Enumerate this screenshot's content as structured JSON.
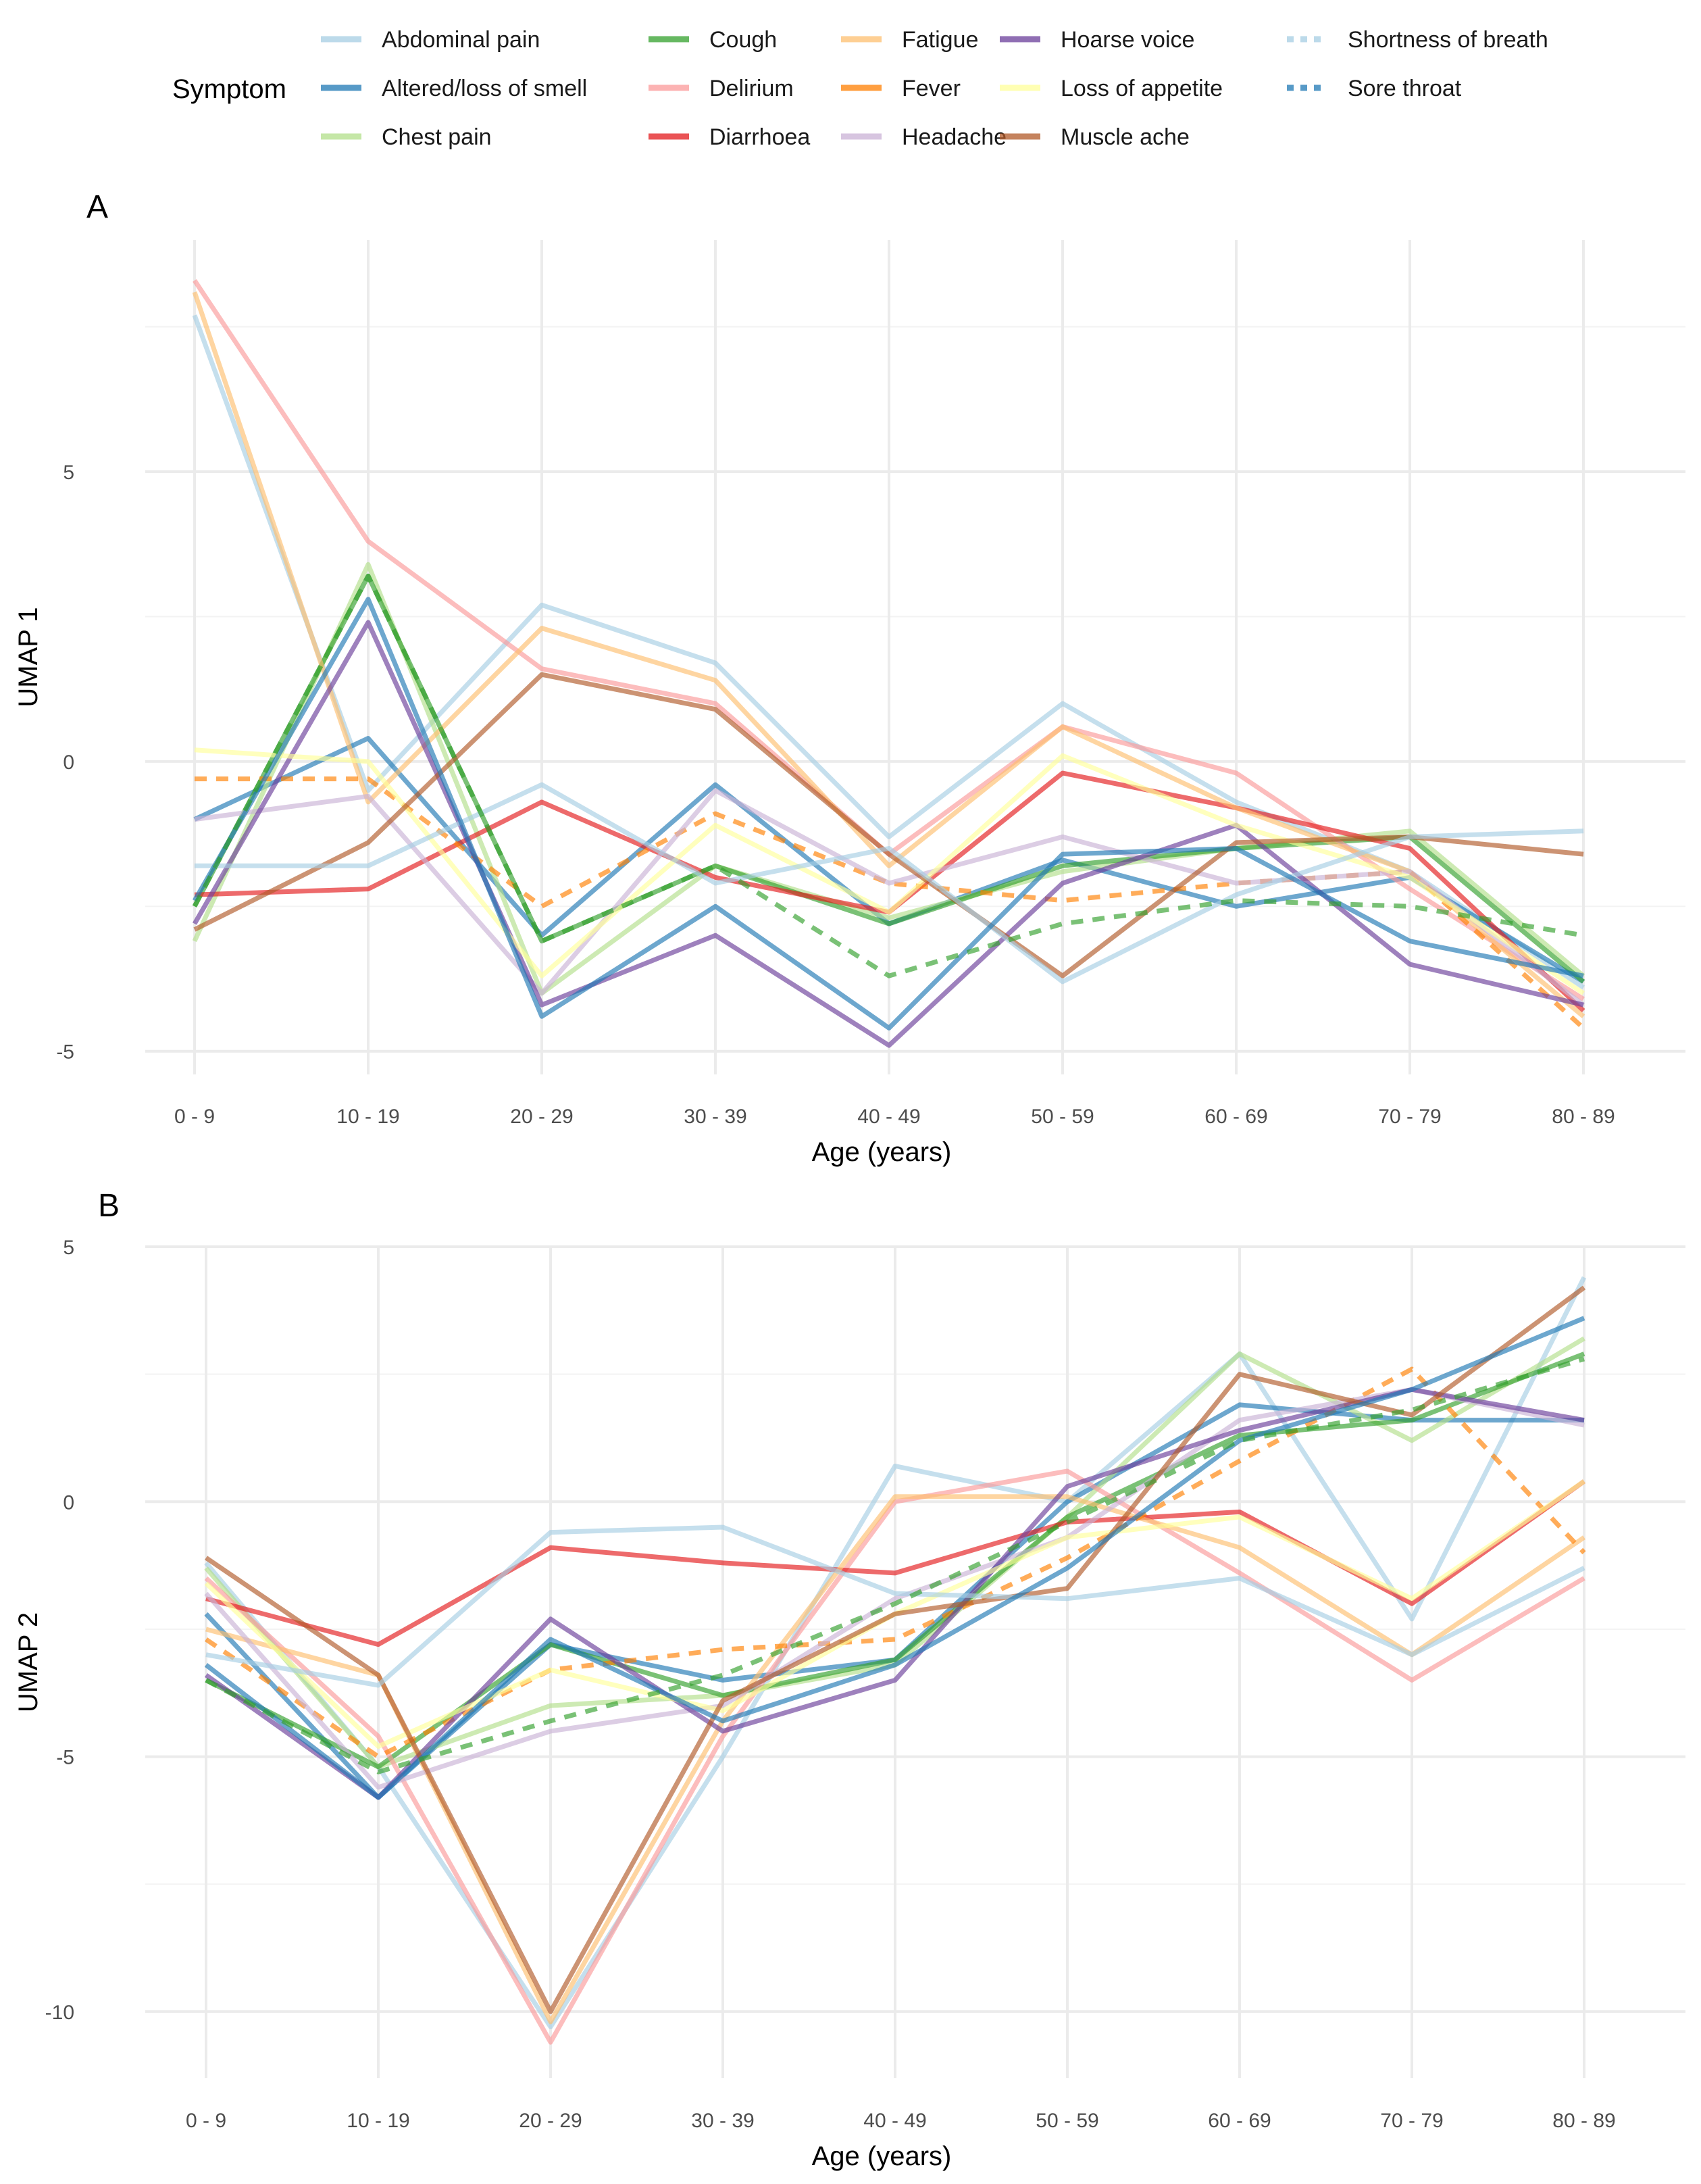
{
  "legend": {
    "title": "Symptom",
    "items": [
      {
        "label": "Abdominal pain",
        "color": "#a6cee3",
        "dash": "solid"
      },
      {
        "label": "Altered/loss of smell",
        "color": "#1f78b4",
        "dash": "solid"
      },
      {
        "label": "Chest pain",
        "color": "#b2df8a",
        "dash": "solid"
      },
      {
        "label": "Cough",
        "color": "#33a02c",
        "dash": "solid"
      },
      {
        "label": "Delirium",
        "color": "#fb9a99",
        "dash": "solid"
      },
      {
        "label": "Diarrhoea",
        "color": "#e31a1c",
        "dash": "solid"
      },
      {
        "label": "Fatigue",
        "color": "#fdbf6f",
        "dash": "solid"
      },
      {
        "label": "Fever",
        "color": "#ff7f00",
        "dash": "solid"
      },
      {
        "label": "Headache",
        "color": "#cab2d6",
        "dash": "solid"
      },
      {
        "label": "Hoarse voice",
        "color": "#6a3d9a",
        "dash": "solid"
      },
      {
        "label": "Loss of appetite",
        "color": "#ffff99",
        "dash": "solid"
      },
      {
        "label": "Muscle ache",
        "color": "#b15928",
        "dash": "solid"
      },
      {
        "label": "Shortness of breath",
        "color": "#a6cee3",
        "dash": "dotted"
      },
      {
        "label": "Sore throat",
        "color": "#1f78b4",
        "dash": "dotted"
      }
    ]
  },
  "chart_data": [
    {
      "type": "line",
      "panel": "A",
      "xlabel": "Age (years)",
      "ylabel": "UMAP 1",
      "categories": [
        "0 - 9",
        "10 - 19",
        "20 - 29",
        "30 - 39",
        "40 - 49",
        "50 - 59",
        "60 - 69",
        "70 - 79",
        "80 - 89"
      ],
      "ylim": [
        -5.4,
        9.0
      ],
      "yticks": [
        -5,
        0,
        5
      ],
      "ytick_labels": [
        "-5",
        "0",
        "5"
      ],
      "series": [
        {
          "name": "Abdominal pain",
          "color": "#a6cee3",
          "dash": "solid",
          "values": [
            7.7,
            -0.5,
            2.7,
            1.7,
            -1.3,
            1.0,
            -0.7,
            -1.9,
            -3.9
          ]
        },
        {
          "name": "Altered/loss of smell",
          "color": "#1f78b4",
          "dash": "solid",
          "values": [
            -1.0,
            0.4,
            -3.0,
            -0.4,
            -2.8,
            -1.7,
            -2.5,
            -2.0,
            -3.8
          ]
        },
        {
          "name": "Chest pain",
          "color": "#b2df8a",
          "dash": "solid",
          "values": [
            -3.1,
            3.4,
            -4.0,
            -1.8,
            -2.7,
            -1.9,
            -1.5,
            -1.2,
            -3.7
          ]
        },
        {
          "name": "Cough",
          "color": "#33a02c",
          "dash": "solid",
          "values": [
            -2.5,
            3.2,
            -3.1,
            -1.8,
            -2.8,
            -1.8,
            -1.5,
            -1.3,
            -3.8
          ]
        },
        {
          "name": "Delirium",
          "color": "#fb9a99",
          "dash": "solid",
          "values": [
            8.3,
            3.8,
            1.6,
            1.0,
            -1.6,
            0.6,
            -0.2,
            -2.2,
            -4.1
          ]
        },
        {
          "name": "Diarrhoea",
          "color": "#e31a1c",
          "dash": "solid",
          "values": [
            -2.3,
            -2.2,
            -0.7,
            -2.0,
            -2.6,
            -0.2,
            -0.8,
            -1.5,
            -4.3
          ]
        },
        {
          "name": "Fatigue",
          "color": "#fdbf6f",
          "dash": "solid",
          "values": [
            8.1,
            -0.7,
            2.3,
            1.4,
            -1.8,
            0.6,
            -0.8,
            -1.9,
            -4.4
          ]
        },
        {
          "name": "Fever",
          "color": "#ff7f00",
          "dash": "dashed",
          "values": [
            -0.3,
            -0.3,
            -2.5,
            -0.9,
            -2.1,
            -2.4,
            -2.1,
            -1.9,
            -4.6
          ]
        },
        {
          "name": "Headache",
          "color": "#cab2d6",
          "dash": "solid",
          "values": [
            -1.0,
            -0.6,
            -4.0,
            -0.5,
            -2.1,
            -1.3,
            -2.1,
            -1.9,
            -4.2
          ]
        },
        {
          "name": "Hoarse voice",
          "color": "#6a3d9a",
          "dash": "solid",
          "values": [
            -2.8,
            2.4,
            -4.2,
            -3.0,
            -4.9,
            -2.1,
            -1.1,
            -3.5,
            -4.2
          ]
        },
        {
          "name": "Loss of appetite",
          "color": "#ffff99",
          "dash": "solid",
          "values": [
            0.2,
            0.0,
            -3.7,
            -1.1,
            -2.6,
            0.1,
            -1.1,
            -2.0,
            -4.0
          ]
        },
        {
          "name": "Muscle ache",
          "color": "#b15928",
          "dash": "solid",
          "values": [
            -2.9,
            -1.4,
            1.5,
            0.9,
            -1.6,
            -3.7,
            -1.4,
            -1.3,
            -1.6
          ]
        },
        {
          "name": "Shortness of breath",
          "color": "#a6cee3",
          "dash": "solid",
          "values": [
            -1.8,
            -1.8,
            -0.4,
            -2.1,
            -1.5,
            -3.8,
            -2.3,
            -1.3,
            -1.2
          ]
        },
        {
          "name": "Sore throat",
          "color": "#1f78b4",
          "dash": "solid",
          "values": [
            -2.4,
            2.8,
            -4.4,
            -2.5,
            -4.6,
            -1.6,
            -1.5,
            -3.1,
            -3.7
          ]
        },
        {
          "name": "Cough",
          "color": "#33a02c",
          "dash": "dashed",
          "values": [
            -2.5,
            3.2,
            -3.1,
            -1.8,
            -3.7,
            -2.8,
            -2.4,
            -2.5,
            -3.0
          ]
        }
      ]
    },
    {
      "type": "line",
      "panel": "B",
      "xlabel": "Age (years)",
      "ylabel": "UMAP 2",
      "categories": [
        "0 - 9",
        "10 - 19",
        "20 - 29",
        "30 - 39",
        "40 - 49",
        "50 - 59",
        "60 - 69",
        "70 - 79",
        "80 - 89"
      ],
      "ylim": [
        -11.3,
        5.0
      ],
      "yticks": [
        -10,
        -5,
        0,
        5
      ],
      "ytick_labels": [
        "-10",
        "-5",
        "0",
        "5"
      ],
      "series": [
        {
          "name": "Abdominal pain",
          "color": "#a6cee3",
          "dash": "solid",
          "values": [
            -1.2,
            -5.2,
            -10.3,
            -5.0,
            0.7,
            0.0,
            2.9,
            -2.3,
            4.4
          ]
        },
        {
          "name": "Altered/loss of smell",
          "color": "#1f78b4",
          "dash": "solid",
          "values": [
            -2.2,
            -5.8,
            -2.8,
            -3.5,
            -3.1,
            0.0,
            1.9,
            1.6,
            1.6
          ]
        },
        {
          "name": "Chest pain",
          "color": "#b2df8a",
          "dash": "solid",
          "values": [
            -1.3,
            -5.2,
            -4.0,
            -3.8,
            -3.2,
            -0.3,
            2.9,
            1.2,
            3.2
          ]
        },
        {
          "name": "Cough",
          "color": "#33a02c",
          "dash": "solid",
          "values": [
            -3.5,
            -5.2,
            -2.8,
            -3.8,
            -3.1,
            -0.3,
            1.3,
            1.6,
            2.9
          ]
        },
        {
          "name": "Delirium",
          "color": "#fb9a99",
          "dash": "solid",
          "values": [
            -1.5,
            -4.6,
            -10.6,
            -4.6,
            0.0,
            0.6,
            -1.4,
            -3.5,
            -1.5
          ]
        },
        {
          "name": "Diarrhoea",
          "color": "#e31a1c",
          "dash": "solid",
          "values": [
            -1.9,
            -2.8,
            -0.9,
            -1.2,
            -1.4,
            -0.4,
            -0.2,
            -2.0,
            0.4
          ]
        },
        {
          "name": "Fatigue",
          "color": "#fdbf6f",
          "dash": "solid",
          "values": [
            -2.5,
            -3.4,
            -10.2,
            -4.3,
            0.1,
            0.1,
            -0.9,
            -3.0,
            -0.7
          ]
        },
        {
          "name": "Fever",
          "color": "#ff7f00",
          "dash": "dashed",
          "values": [
            -2.7,
            -5.0,
            -3.3,
            -2.9,
            -2.7,
            -1.1,
            0.8,
            2.6,
            -1.0
          ]
        },
        {
          "name": "Headache",
          "color": "#cab2d6",
          "dash": "solid",
          "values": [
            -1.8,
            -5.6,
            -4.5,
            -4.0,
            -1.9,
            -0.7,
            1.6,
            2.2,
            1.5
          ]
        },
        {
          "name": "Hoarse voice",
          "color": "#6a3d9a",
          "dash": "solid",
          "values": [
            -3.4,
            -5.8,
            -2.3,
            -4.5,
            -3.5,
            0.3,
            1.4,
            2.2,
            1.6
          ]
        },
        {
          "name": "Loss of appetite",
          "color": "#ffff99",
          "dash": "solid",
          "values": [
            -1.6,
            -4.8,
            -3.3,
            -4.1,
            -2.2,
            -0.7,
            -0.3,
            -1.9,
            0.4
          ]
        },
        {
          "name": "Muscle ache",
          "color": "#b15928",
          "dash": "solid",
          "values": [
            -1.1,
            -3.4,
            -10.0,
            -3.9,
            -2.2,
            -1.7,
            2.5,
            1.7,
            4.2
          ]
        },
        {
          "name": "Shortness of breath",
          "color": "#a6cee3",
          "dash": "solid",
          "values": [
            -3.0,
            -3.6,
            -0.6,
            -0.5,
            -1.8,
            -1.9,
            -1.5,
            -3.0,
            -1.3
          ]
        },
        {
          "name": "Sore throat",
          "color": "#1f78b4",
          "dash": "solid",
          "values": [
            -3.2,
            -5.8,
            -2.7,
            -4.3,
            -3.2,
            -1.3,
            1.2,
            2.2,
            3.6
          ]
        },
        {
          "name": "Cough",
          "color": "#33a02c",
          "dash": "dashed",
          "values": [
            -3.5,
            -5.3,
            -4.3,
            -3.4,
            -2.0,
            -0.4,
            1.2,
            1.8,
            2.8
          ]
        }
      ]
    }
  ]
}
